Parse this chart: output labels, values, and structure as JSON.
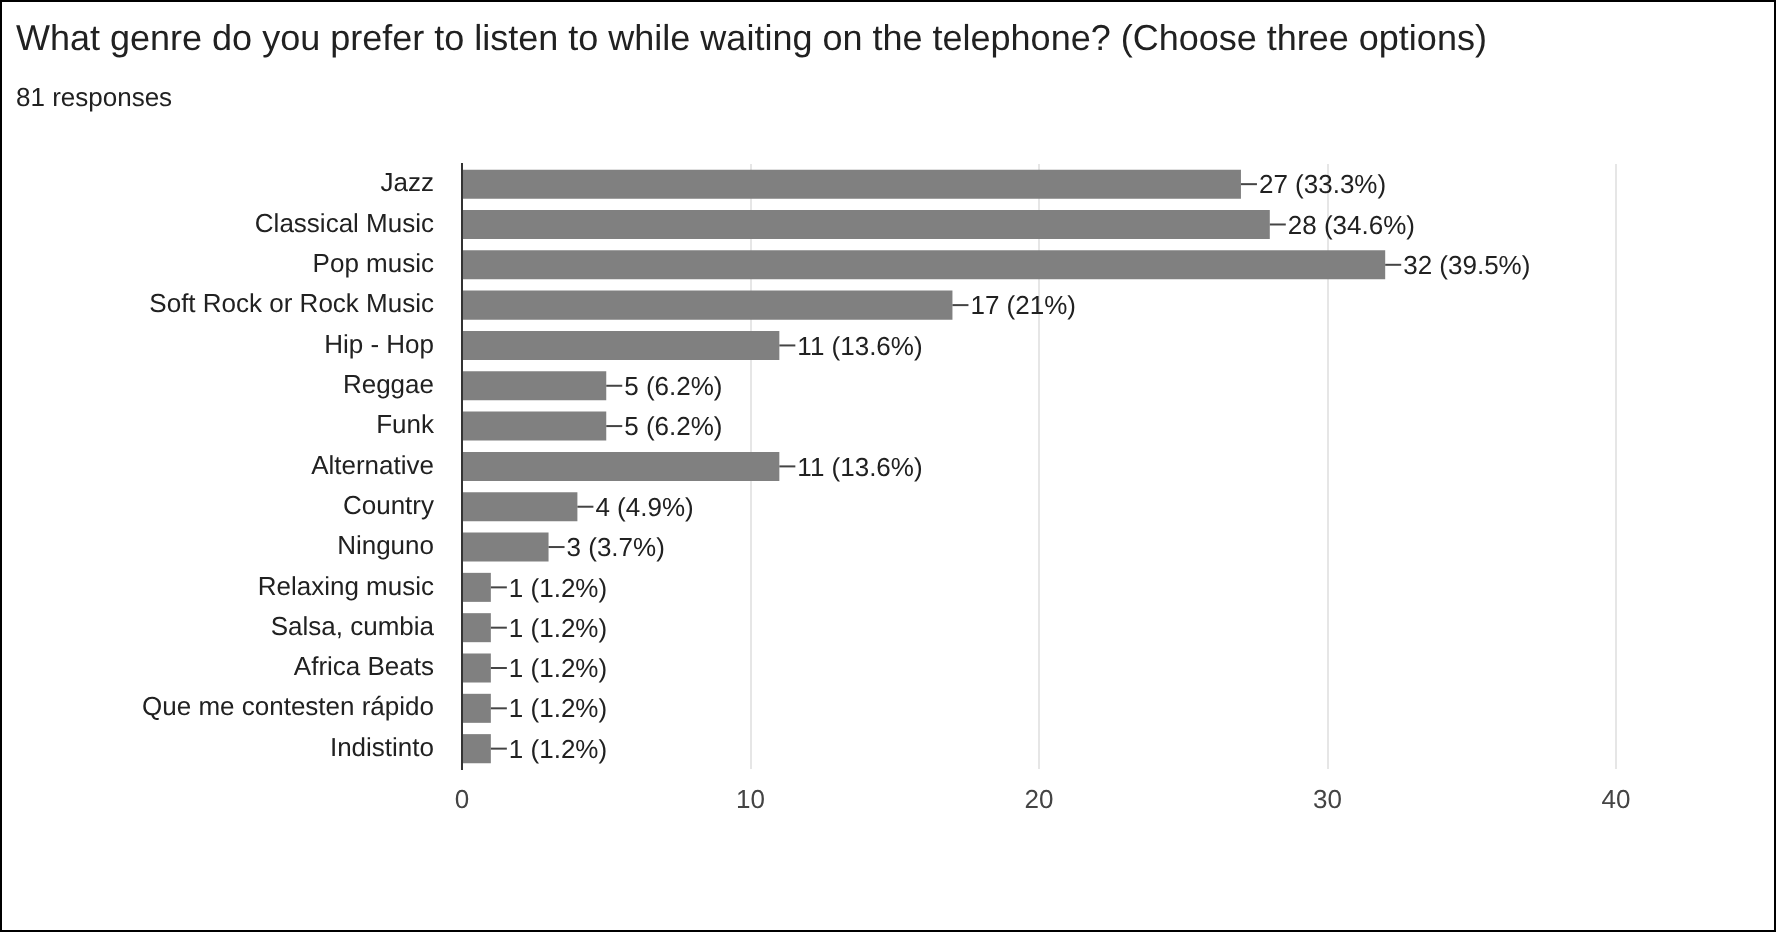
{
  "chart_data": {
    "type": "bar",
    "orientation": "horizontal",
    "title": "What genre do you prefer to listen to while waiting on the telephone? (Choose three options)",
    "subtitle": "81 responses",
    "categories": [
      "Jazz",
      "Classical Music",
      "Pop music",
      "Soft Rock or Rock Music",
      "Hip - Hop",
      "Reggae",
      "Funk",
      "Alternative",
      "Country",
      "Ninguno",
      "Relaxing music",
      "Salsa, cumbia",
      "Africa Beats",
      "Que me contesten rápido",
      "Indistinto"
    ],
    "values": [
      27,
      28,
      32,
      17,
      11,
      5,
      5,
      11,
      4,
      3,
      1,
      1,
      1,
      1,
      1
    ],
    "value_labels": [
      "27 (33.3%)",
      "28 (34.6%)",
      "32 (39.5%)",
      "17 (21%)",
      "11 (13.6%)",
      "5 (6.2%)",
      "5 (6.2%)",
      "11 (13.6%)",
      "4 (4.9%)",
      "3 (3.7%)",
      "1 (1.2%)",
      "1 (1.2%)",
      "1 (1.2%)",
      "1 (1.2%)",
      "1 (1.2%)"
    ],
    "color": "#808080",
    "xlim": [
      0,
      40
    ],
    "xticks": [
      0,
      10,
      20,
      30,
      40
    ],
    "grid": "x"
  }
}
